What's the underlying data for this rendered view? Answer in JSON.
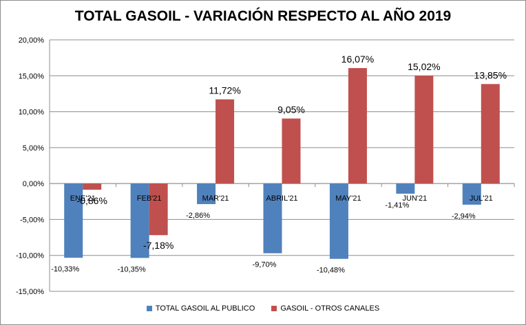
{
  "chart_data": {
    "type": "bar",
    "title": "TOTAL GASOIL - VARIACIÓN RESPECTO AL AÑO 2019",
    "categories": [
      "ENE'21",
      "FEB'21",
      "MAR'21",
      "ABRIL'21",
      "MAY'21",
      "JUN'21",
      "JUL'21"
    ],
    "series": [
      {
        "name": "TOTAL GASOIL AL PUBLICO",
        "color": "#4f81bd",
        "values": [
          -10.33,
          -10.35,
          -2.86,
          -9.7,
          -10.48,
          -1.41,
          -2.94
        ],
        "labels": [
          "-10,33%",
          "-10,35%",
          "-2,86%",
          "-9,70%",
          "-10,48%",
          "-1,41%",
          "-2,94%"
        ]
      },
      {
        "name": "GASOIL - OTROS CANALES",
        "color": "#c0504d",
        "values": [
          -0.86,
          -7.18,
          11.72,
          9.05,
          16.07,
          15.02,
          13.85
        ],
        "labels": [
          "-0,86%",
          "-7,18%",
          "11,72%",
          "9,05%",
          "16,07%",
          "15,02%",
          "13,85%"
        ]
      }
    ],
    "ylim": [
      -15,
      20
    ],
    "yticks": [
      20,
      15,
      10,
      5,
      0,
      -5,
      -10,
      -15
    ],
    "ytick_labels": [
      "20,00%",
      "15,00%",
      "10,00%",
      "5,00%",
      "0,00%",
      "-5,00%",
      "-10,00%",
      "-15,00%"
    ],
    "grid": true,
    "legend_position": "bottom",
    "xlabel": "",
    "ylabel": ""
  }
}
